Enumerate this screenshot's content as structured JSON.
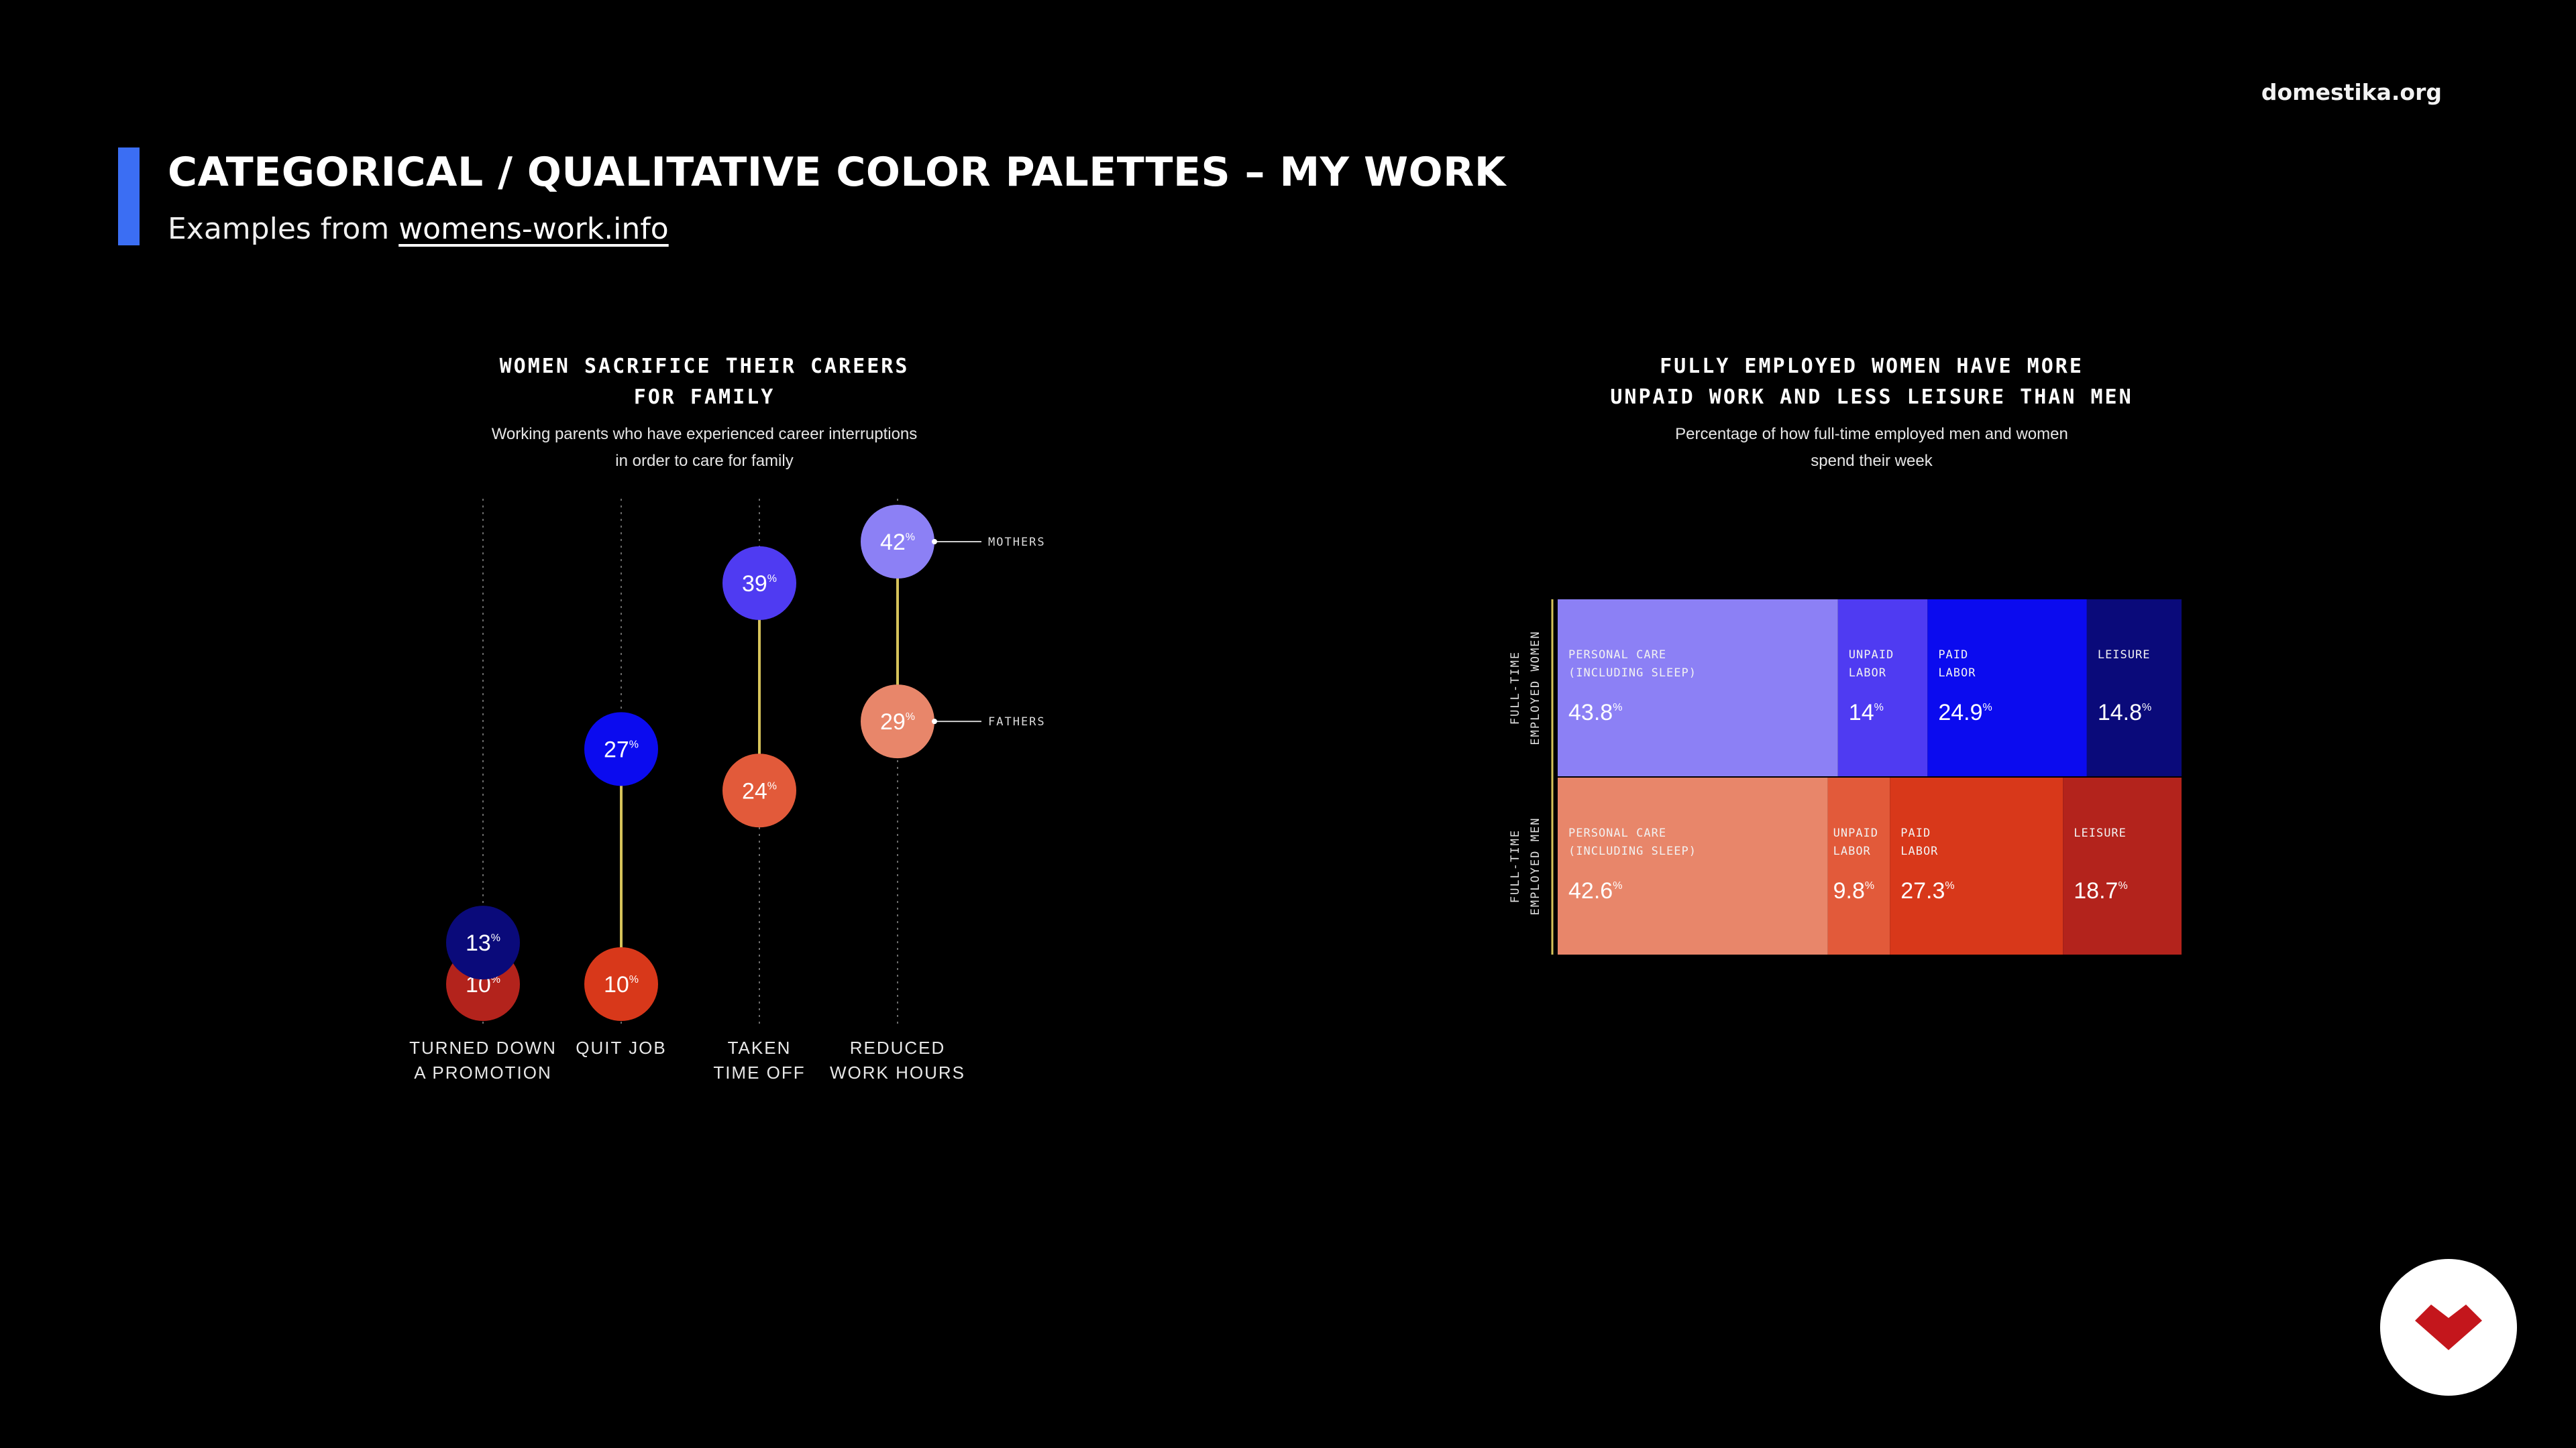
{
  "brand": {
    "site": "domestika.org"
  },
  "header": {
    "title": "CATEGORICAL / QUALITATIVE COLOR PALETTES – MY WORK",
    "subtitle_prefix": "Examples from ",
    "subtitle_link": "womens-work.info",
    "accent_color": "#3b6ef3"
  },
  "left_chart": {
    "title_line1": "WOMEN SACRIFICE THEIR CAREERS",
    "title_line2": "FOR FAMILY",
    "subtitle_line1": "Working parents who have experienced career interruptions",
    "subtitle_line2": "in order to care for family"
  },
  "right_chart": {
    "title_line1": "FULLY EMPLOYED WOMEN HAVE MORE",
    "title_line2": "UNPAID WORK AND LESS LEISURE THAN MEN",
    "subtitle_line1": "Percentage of how full-time employed men and women",
    "subtitle_line2": "spend their week"
  },
  "chart_data": [
    {
      "type": "scatter",
      "title": "WOMEN SACRIFICE THEIR CAREERS FOR FAMILY",
      "subtitle": "Working parents who have experienced career interruptions in order to care for family",
      "categories": [
        [
          "TURNED DOWN",
          "A PROMOTION"
        ],
        [
          "QUIT JOB"
        ],
        [
          "TAKEN",
          "TIME OFF"
        ],
        [
          "REDUCED",
          "WORK HOURS"
        ]
      ],
      "unit": "%",
      "ylim": [
        10,
        42
      ],
      "series": [
        {
          "name": "MOTHERS",
          "values": [
            13,
            27,
            39,
            42
          ],
          "colors": [
            "#0a0a7a",
            "#0b0bef",
            "#4f3bf2",
            "#8c80f5"
          ]
        },
        {
          "name": "FATHERS",
          "values": [
            10,
            10,
            24,
            29
          ],
          "colors": [
            "#b3231c",
            "#d8381a",
            "#e25a3a",
            "#e8866a"
          ]
        }
      ],
      "connector_color": "#d6c35a"
    },
    {
      "type": "bar",
      "stacked": true,
      "orientation": "horizontal",
      "title": "FULLY EMPLOYED WOMEN HAVE MORE UNPAID WORK AND LESS LEISURE THAN MEN",
      "subtitle": "Percentage of how full-time employed men and women spend their week",
      "unit": "%",
      "rows": [
        {
          "label": [
            "FULL-TIME",
            "EMPLOYED WOMEN"
          ],
          "segments": [
            {
              "label": [
                "PERSONAL CARE",
                "(INCLUDING SLEEP)"
              ],
              "value": 43.8,
              "color": "#8c80f5"
            },
            {
              "label": [
                "UNPAID",
                "LABOR"
              ],
              "value": 14,
              "color": "#4f3bf2"
            },
            {
              "label": [
                "PAID",
                "LABOR"
              ],
              "value": 24.9,
              "color": "#0b0bef"
            },
            {
              "label": [
                "LEISURE"
              ],
              "value": 14.8,
              "color": "#0a0a7a"
            }
          ]
        },
        {
          "label": [
            "FULL-TIME",
            "EMPLOYED MEN"
          ],
          "segments": [
            {
              "label": [
                "PERSONAL CARE",
                "(INCLUDING SLEEP)"
              ],
              "value": 42.6,
              "color": "#e8866a"
            },
            {
              "label": [
                "UNPAID",
                "LABOR"
              ],
              "value": 9.8,
              "color": "#e25a3a"
            },
            {
              "label": [
                "PAID",
                "LABOR"
              ],
              "value": 27.3,
              "color": "#d8381a"
            },
            {
              "label": [
                "LEISURE"
              ],
              "value": 18.7,
              "color": "#b3231c"
            }
          ]
        }
      ],
      "axis_color": "#d6c35a"
    }
  ]
}
